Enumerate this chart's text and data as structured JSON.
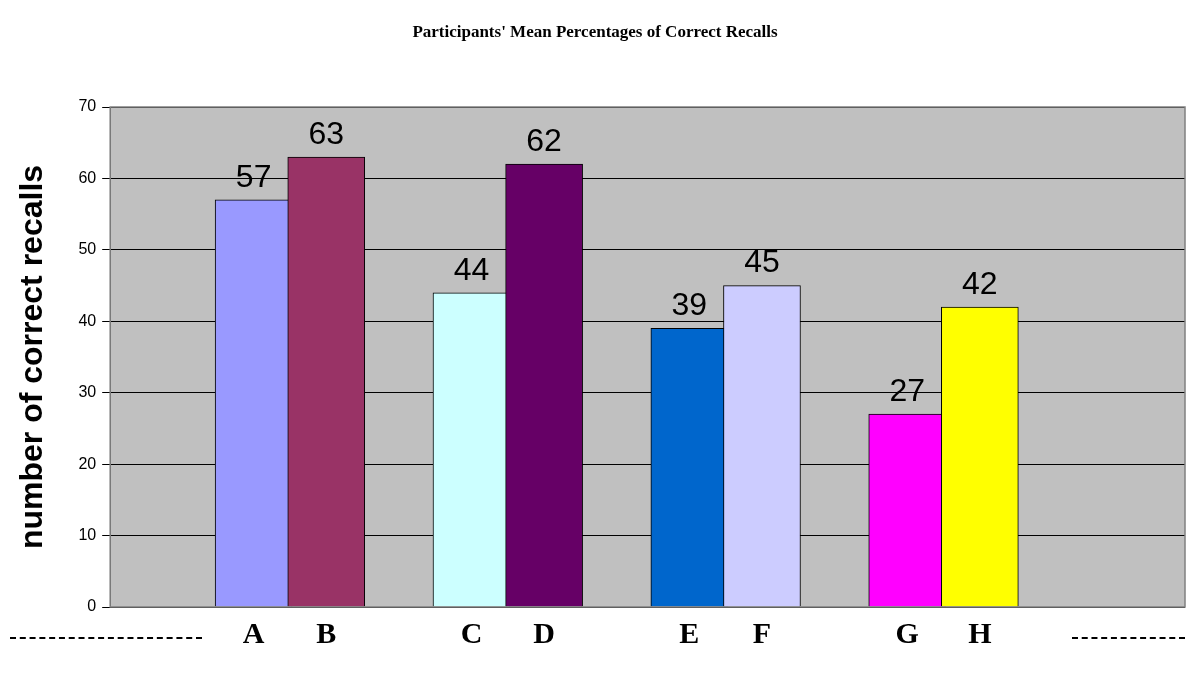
{
  "chart_data": {
    "type": "bar",
    "title": "Participants' Mean Percentages of Correct Recalls",
    "ylabel": "number of correct recalls",
    "categories": [
      "A",
      "B",
      "C",
      "D",
      "E",
      "F",
      "G",
      "H"
    ],
    "values": [
      57,
      63,
      44,
      62,
      39,
      45,
      27,
      42
    ],
    "colors": [
      "#9999ff",
      "#993366",
      "#ccffff",
      "#660066",
      "#0066cc",
      "#ccccff",
      "#ff00ff",
      "#ffff00"
    ],
    "ylim": [
      0,
      70
    ],
    "yticks": [
      0,
      10,
      20,
      30,
      40,
      50,
      60,
      70
    ],
    "grid": "y",
    "data_labels": true
  }
}
